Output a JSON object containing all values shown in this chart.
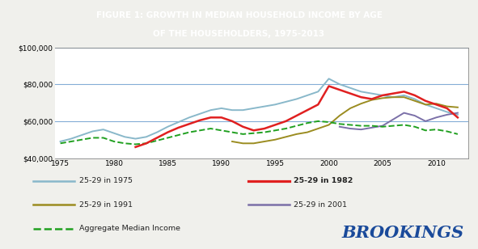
{
  "title_line1": "FIGURE 1: GROWTH IN MEDIAN HOUSEHOLD INCOME BY AGE",
  "title_line2": "OF THE HOUSEHOLDERS, 1975-2013",
  "title_bg_color": "#a8b8cc",
  "bg_color": "#f0f0ec",
  "plot_bg_color": "#ffffff",
  "grid_color": "#6699cc",
  "brookings_color": "#1a4a9a",
  "years_1975": [
    1975,
    1976,
    1977,
    1978,
    1979,
    1980,
    1981,
    1982,
    1983,
    1984,
    1985,
    1986,
    1987,
    1988,
    1989,
    1990,
    1991,
    1992,
    1993,
    1994,
    1995,
    1996,
    1997,
    1998,
    1999,
    2000,
    2001,
    2002,
    2003,
    2004,
    2005,
    2006,
    2007,
    2008,
    2009,
    2010,
    2011,
    2012
  ],
  "data_1975": [
    49000,
    50500,
    52500,
    54500,
    55500,
    53500,
    51500,
    50500,
    51500,
    54000,
    57000,
    59500,
    62000,
    64000,
    66000,
    67000,
    66000,
    66000,
    67000,
    68000,
    69000,
    70500,
    72000,
    74000,
    76000,
    83000,
    80000,
    78000,
    76000,
    75000,
    74000,
    73000,
    74000,
    72000,
    69000,
    67000,
    65000,
    63500
  ],
  "years_1982": [
    1982,
    1983,
    1984,
    1985,
    1986,
    1987,
    1988,
    1989,
    1990,
    1991,
    1992,
    1993,
    1994,
    1995,
    1996,
    1997,
    1998,
    1999,
    2000,
    2001,
    2002,
    2003,
    2004,
    2005,
    2006,
    2007,
    2008,
    2009,
    2010,
    2011,
    2012
  ],
  "data_1982": [
    46000,
    48000,
    51000,
    54000,
    56500,
    58500,
    60500,
    62000,
    62000,
    60000,
    57000,
    55000,
    56000,
    58000,
    60000,
    63000,
    66000,
    69000,
    79000,
    77000,
    75000,
    73000,
    72000,
    74000,
    75000,
    76000,
    74000,
    71000,
    69000,
    67000,
    62000
  ],
  "years_1991": [
    1991,
    1992,
    1993,
    1994,
    1995,
    1996,
    1997,
    1998,
    1999,
    2000,
    2001,
    2002,
    2003,
    2004,
    2005,
    2006,
    2007,
    2008,
    2009,
    2010,
    2011,
    2012
  ],
  "data_1991": [
    49000,
    48000,
    48000,
    49000,
    50000,
    51500,
    53000,
    54000,
    56000,
    58000,
    63000,
    67000,
    69500,
    71500,
    72500,
    73000,
    73000,
    71000,
    69000,
    69500,
    68000,
    67500
  ],
  "years_2001": [
    2001,
    2002,
    2003,
    2004,
    2005,
    2006,
    2007,
    2008,
    2009,
    2010,
    2011,
    2012
  ],
  "data_2001": [
    57000,
    56000,
    55500,
    56500,
    57500,
    61000,
    64500,
    63000,
    60000,
    62000,
    63500,
    64500
  ],
  "years_agg": [
    1975,
    1976,
    1977,
    1978,
    1979,
    1980,
    1981,
    1982,
    1983,
    1984,
    1985,
    1986,
    1987,
    1988,
    1989,
    1990,
    1991,
    1992,
    1993,
    1994,
    1995,
    1996,
    1997,
    1998,
    1999,
    2000,
    2001,
    2002,
    2003,
    2004,
    2005,
    2006,
    2007,
    2008,
    2009,
    2010,
    2011,
    2012
  ],
  "data_agg": [
    48000,
    49000,
    50000,
    51000,
    51000,
    49000,
    48000,
    47500,
    48000,
    49500,
    51000,
    52500,
    54000,
    55000,
    56000,
    55000,
    54000,
    53000,
    53500,
    54000,
    55000,
    56000,
    57500,
    59000,
    60000,
    59500,
    58500,
    58000,
    57500,
    57500,
    57000,
    57500,
    58000,
    57000,
    55000,
    55500,
    54500,
    53000
  ],
  "color_1975": "#89b8ca",
  "color_1982": "#e02020",
  "color_1991": "#9b8c20",
  "color_2001": "#7b70a8",
  "color_agg": "#20a020",
  "ylim": [
    40000,
    100000
  ],
  "yticks": [
    40000,
    60000,
    80000,
    100000
  ],
  "xlim": [
    1974.5,
    2013
  ],
  "xticks": [
    1975,
    1980,
    1985,
    1990,
    1995,
    2000,
    2005,
    2010
  ]
}
